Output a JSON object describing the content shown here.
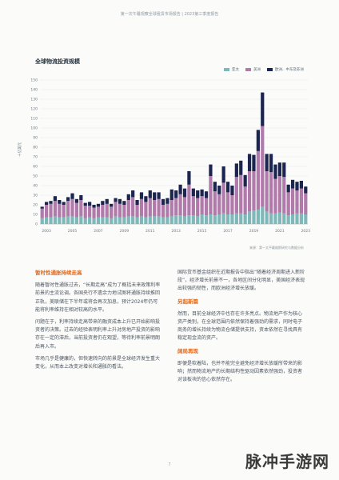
{
  "header": "第一次午睡观察全球租赁市场报告 | 2023第三季度报告",
  "chart_data": {
    "type": "bar",
    "stacked": true,
    "title": "全球物流投资规模",
    "ylabel": "十亿美元",
    "ylim": [
      0,
      150
    ],
    "yticks": [
      0,
      10,
      20,
      30,
      40,
      50,
      60,
      70,
      80,
      90,
      100,
      110,
      120,
      130,
      140,
      150
    ],
    "xticks": [
      "2003",
      "2005",
      "2007",
      "2009",
      "2011",
      "2013",
      "2015",
      "2017",
      "2019",
      "2021",
      "2023"
    ],
    "legend_position": "top-right",
    "series": [
      {
        "name": "亚太",
        "color": "#7fb8b8",
        "values": [
          6,
          7,
          7,
          8,
          7,
          7,
          8,
          8,
          7,
          8,
          6,
          7,
          6,
          7,
          7,
          7,
          6,
          8,
          7,
          7,
          8,
          8,
          7,
          8,
          7,
          8,
          8,
          8,
          7,
          7,
          8,
          9,
          9,
          8,
          9,
          9,
          8,
          10,
          9,
          10,
          9,
          10,
          11,
          10,
          10,
          11,
          11,
          10,
          13,
          14,
          15,
          18,
          13,
          11,
          11,
          12,
          11,
          9,
          10,
          11,
          11,
          10
        ]
      },
      {
        "name": "美洲",
        "color": "#b07aab",
        "values": [
          10,
          13,
          14,
          16,
          14,
          13,
          16,
          18,
          15,
          17,
          13,
          12,
          11,
          11,
          13,
          14,
          12,
          15,
          14,
          13,
          17,
          20,
          13,
          18,
          16,
          19,
          17,
          18,
          13,
          14,
          17,
          18,
          22,
          20,
          32,
          20,
          19,
          19,
          18,
          40,
          25,
          21,
          32,
          23,
          20,
          38,
          40,
          29,
          42,
          41,
          61,
          84,
          42,
          43,
          36,
          38,
          38,
          24,
          27,
          24,
          26,
          22
        ]
      },
      {
        "name": "欧洲、中东及非洲",
        "color": "#1b2550",
        "values": [
          2,
          3,
          3,
          5,
          4,
          3,
          4,
          6,
          4,
          5,
          3,
          4,
          3,
          3,
          4,
          5,
          3,
          4,
          5,
          4,
          6,
          7,
          5,
          7,
          6,
          8,
          8,
          7,
          6,
          6,
          11,
          8,
          10,
          9,
          14,
          8,
          8,
          7,
          7,
          12,
          10,
          9,
          17,
          11,
          10,
          14,
          15,
          12,
          18,
          17,
          22,
          35,
          18,
          19,
          15,
          14,
          15,
          8,
          9,
          9,
          8,
          7
        ]
      }
    ]
  },
  "source": "来源：第一太平戴维斯研究与数据分析",
  "left_column": {
    "heading": "暂时性通胀持续走高",
    "paragraphs": [
      "随着暂时性通胀过去，“长期走高”成为了概括未来政策利率前景的主流论调。各国央行不遗余力地试图将通胀持续推回正轨，美联储在下半年或将会再次加息，预计2024年仍可能将利率维持在相对较高的水平。",
      "问题在于，利率持续走高带来的融资成本上升已开始影响投资者的决策。过去的经验表明利率上升对房地产投资的影响存在一定的滞后，当前投资者仍在观望，等待利率前景明朗后再入市。",
      "市场几乎是健康的，但快速转向的前景是全球经济发生重大变化，从而本上改变对增长和通胀的看法。"
    ]
  },
  "right_column": {
    "paragraphs": [
      "国际货币基金组织在近期报告中指出“随着经济周期进入新阶段”，经济增长前景不一，各地区间分化明显，美国经济表现出较强的韧性，而欧洲经济增长放缓。"
    ],
    "sections": [
      {
        "heading": "另起新篇",
        "text": "然而，目前全球经济中也存在许多亮点。物流地产作为核心资产类别，在全球范围内依然保持着强劲的需求，同时电子商务的增长持续为物流仓储提供支持，资本依然在寻找具有稳定现金流的资产。"
      },
      {
        "heading": "阔局再现",
        "text": "即便是软着陆，也并不能完全避免经济增长放缓所带来的影响；然而物流地产的长期结构性驱动因素依然强劲，投资者对该板块的信心依然存在。"
      }
    ]
  },
  "page_number": "7",
  "watermark": "脉冲手游网"
}
